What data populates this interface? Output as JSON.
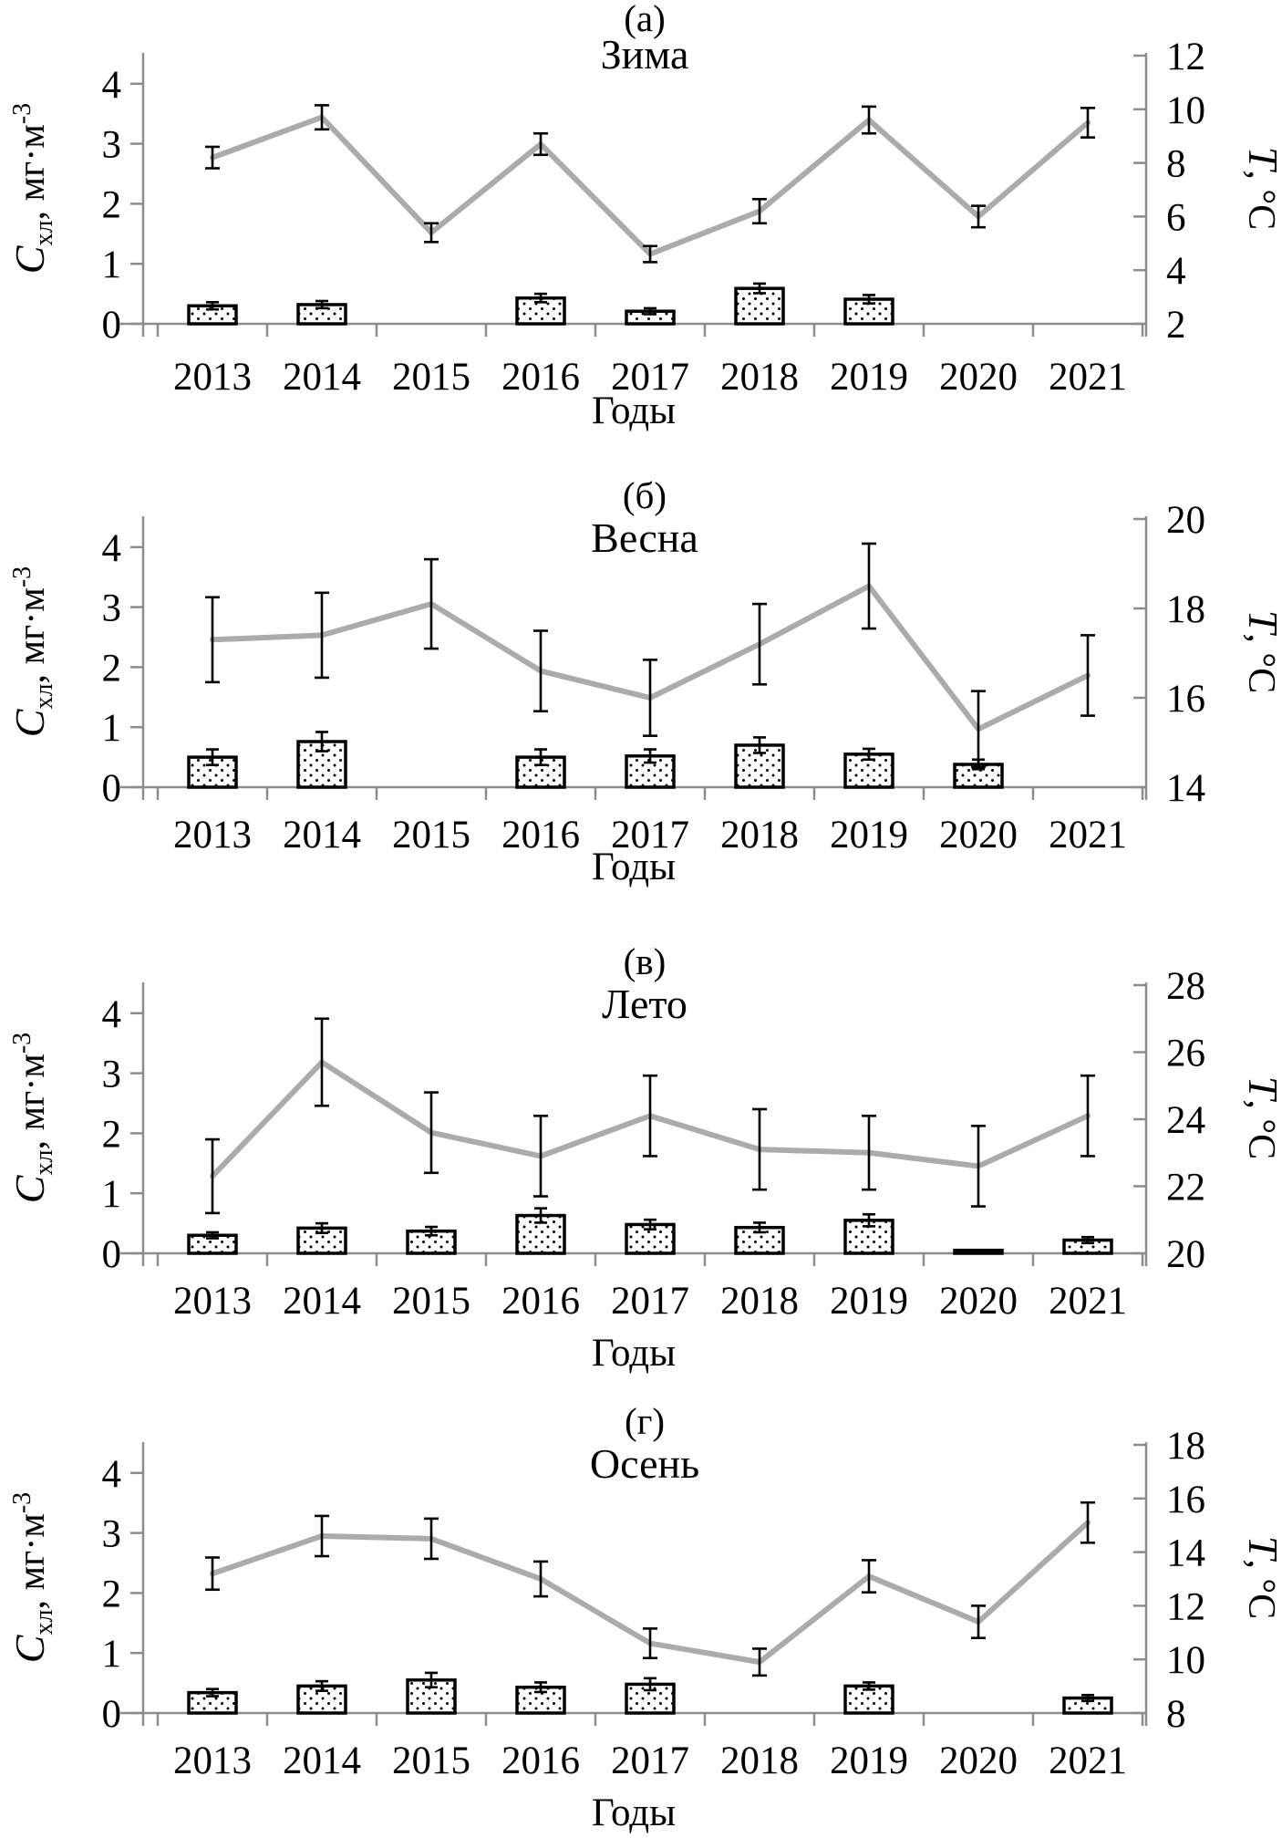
{
  "figure": {
    "description": "Four-panel seasonal figure: dotted bars = chlorophyll concentration (left axis), gray line with error bars = temperature (right axis), years 2013-2021",
    "xlabel": "Годы",
    "left_axis_label": {
      "symbol": "C",
      "subscript": "хл",
      "rest": ", мг·м",
      "superscript": "-3"
    },
    "right_axis_label": {
      "symbol": "T",
      "rest": ", °C"
    },
    "colors": {
      "temperature_line": "#ababab",
      "axis": "#8c8c8c",
      "error_bar": "#000000",
      "bar_border": "#000000",
      "bar_fill": "#ffffff",
      "text": "#000000",
      "background": "#ffffff"
    }
  },
  "chart_data": [
    {
      "type": "bar+line",
      "panel_label": "(а)",
      "title": "Зима",
      "categories": [
        "2013",
        "2014",
        "2015",
        "2016",
        "2017",
        "2018",
        "2019",
        "2020",
        "2021"
      ],
      "xlabel": "Годы",
      "left_ylabel": "Cхл, мг·м-3",
      "right_ylabel": "T, °C",
      "left_ylim": [
        0,
        4.5
      ],
      "left_ticks": [
        0,
        1,
        2,
        3,
        4
      ],
      "right_ylim": [
        2,
        12
      ],
      "right_ticks": [
        2,
        4,
        6,
        8,
        10,
        12
      ],
      "grid": false,
      "legend": "none",
      "series": [
        {
          "name": "C хл, мг·м-3 (bars, left axis)",
          "axis": "left",
          "values": [
            0.3,
            0.32,
            null,
            0.43,
            0.21,
            0.59,
            0.41,
            null,
            null
          ],
          "errors": [
            0.06,
            0.06,
            null,
            0.07,
            0.05,
            0.08,
            0.07,
            null,
            null
          ]
        },
        {
          "name": "T, °C (line, right axis)",
          "axis": "right",
          "values": [
            8.2,
            9.7,
            5.4,
            8.7,
            4.6,
            6.2,
            9.6,
            6.0,
            9.5
          ],
          "errors": [
            0.4,
            0.45,
            0.35,
            0.4,
            0.3,
            0.45,
            0.5,
            0.4,
            0.55
          ]
        }
      ]
    },
    {
      "type": "bar+line",
      "panel_label": "(б)",
      "title": "Весна",
      "categories": [
        "2013",
        "2014",
        "2015",
        "2016",
        "2017",
        "2018",
        "2019",
        "2020",
        "2021"
      ],
      "xlabel": "Годы",
      "left_ylabel": "Cхл, мг·м-3",
      "right_ylabel": "T, °C",
      "left_ylim": [
        0,
        4.5
      ],
      "left_ticks": [
        0,
        1,
        2,
        3,
        4
      ],
      "right_ylim": [
        14,
        20
      ],
      "right_ticks": [
        14,
        16,
        18,
        20
      ],
      "grid": false,
      "legend": "none",
      "series": [
        {
          "name": "C хл, мг·м-3 (bars, left axis)",
          "axis": "left",
          "values": [
            0.5,
            0.76,
            null,
            0.5,
            0.52,
            0.7,
            0.55,
            0.38,
            null
          ],
          "errors": [
            0.13,
            0.16,
            null,
            0.13,
            0.11,
            0.13,
            0.09,
            0.08,
            null
          ]
        },
        {
          "name": "T, °C (line, right axis)",
          "axis": "right",
          "values": [
            17.3,
            17.4,
            18.1,
            16.6,
            16.0,
            17.2,
            18.5,
            15.3,
            16.5
          ],
          "errors": [
            0.95,
            0.95,
            1.0,
            0.9,
            0.85,
            0.9,
            0.95,
            0.85,
            0.9
          ]
        }
      ]
    },
    {
      "type": "bar+line",
      "panel_label": "(в)",
      "title": "Лето",
      "categories": [
        "2013",
        "2014",
        "2015",
        "2016",
        "2017",
        "2018",
        "2019",
        "2020",
        "2021"
      ],
      "xlabel": "Годы",
      "left_ylabel": "Cхл, мг·м-3",
      "right_ylabel": "T, °C",
      "left_ylim": [
        0,
        4.5
      ],
      "left_ticks": [
        0,
        1,
        2,
        3,
        4
      ],
      "right_ylim": [
        20,
        28
      ],
      "right_ticks": [
        20,
        22,
        24,
        26,
        28
      ],
      "grid": false,
      "legend": "none",
      "series": [
        {
          "name": "C хл, мг·м-3 (bars, left axis)",
          "axis": "left",
          "values": [
            0.3,
            0.42,
            0.37,
            0.63,
            0.48,
            0.43,
            0.55,
            0.05,
            0.22
          ],
          "errors": [
            0.05,
            0.08,
            0.07,
            0.12,
            0.08,
            0.08,
            0.1,
            null,
            0.05
          ]
        },
        {
          "name": "T, °C (line, right axis)",
          "axis": "right",
          "values": [
            22.3,
            25.7,
            23.6,
            22.9,
            24.1,
            23.1,
            23.0,
            22.6,
            24.1
          ],
          "errors": [
            1.1,
            1.3,
            1.2,
            1.2,
            1.2,
            1.2,
            1.1,
            1.2,
            1.2
          ]
        }
      ]
    },
    {
      "type": "bar+line",
      "panel_label": "(г)",
      "title": "Осень",
      "categories": [
        "2013",
        "2014",
        "2015",
        "2016",
        "2017",
        "2018",
        "2019",
        "2020",
        "2021"
      ],
      "xlabel": "Годы",
      "left_ylabel": "Cхл, мг·м-3",
      "right_ylabel": "T, °C",
      "left_ylim": [
        0,
        4.5
      ],
      "left_ticks": [
        0,
        1,
        2,
        3,
        4
      ],
      "right_ylim": [
        8,
        18
      ],
      "right_ticks": [
        8,
        10,
        12,
        14,
        16,
        18
      ],
      "grid": false,
      "legend": "none",
      "series": [
        {
          "name": "C хл, мг·м-3 (bars, left axis)",
          "axis": "left",
          "values": [
            0.34,
            0.45,
            0.55,
            0.43,
            0.48,
            null,
            0.45,
            null,
            0.25
          ],
          "errors": [
            0.06,
            0.08,
            0.12,
            0.08,
            0.1,
            null,
            0.06,
            null,
            0.05
          ]
        },
        {
          "name": "T, °C (line, right axis)",
          "axis": "right",
          "values": [
            13.2,
            14.6,
            14.5,
            13.0,
            10.6,
            9.9,
            13.1,
            11.4,
            15.1
          ],
          "errors": [
            0.6,
            0.75,
            0.75,
            0.65,
            0.55,
            0.5,
            0.6,
            0.6,
            0.75
          ]
        }
      ]
    }
  ]
}
